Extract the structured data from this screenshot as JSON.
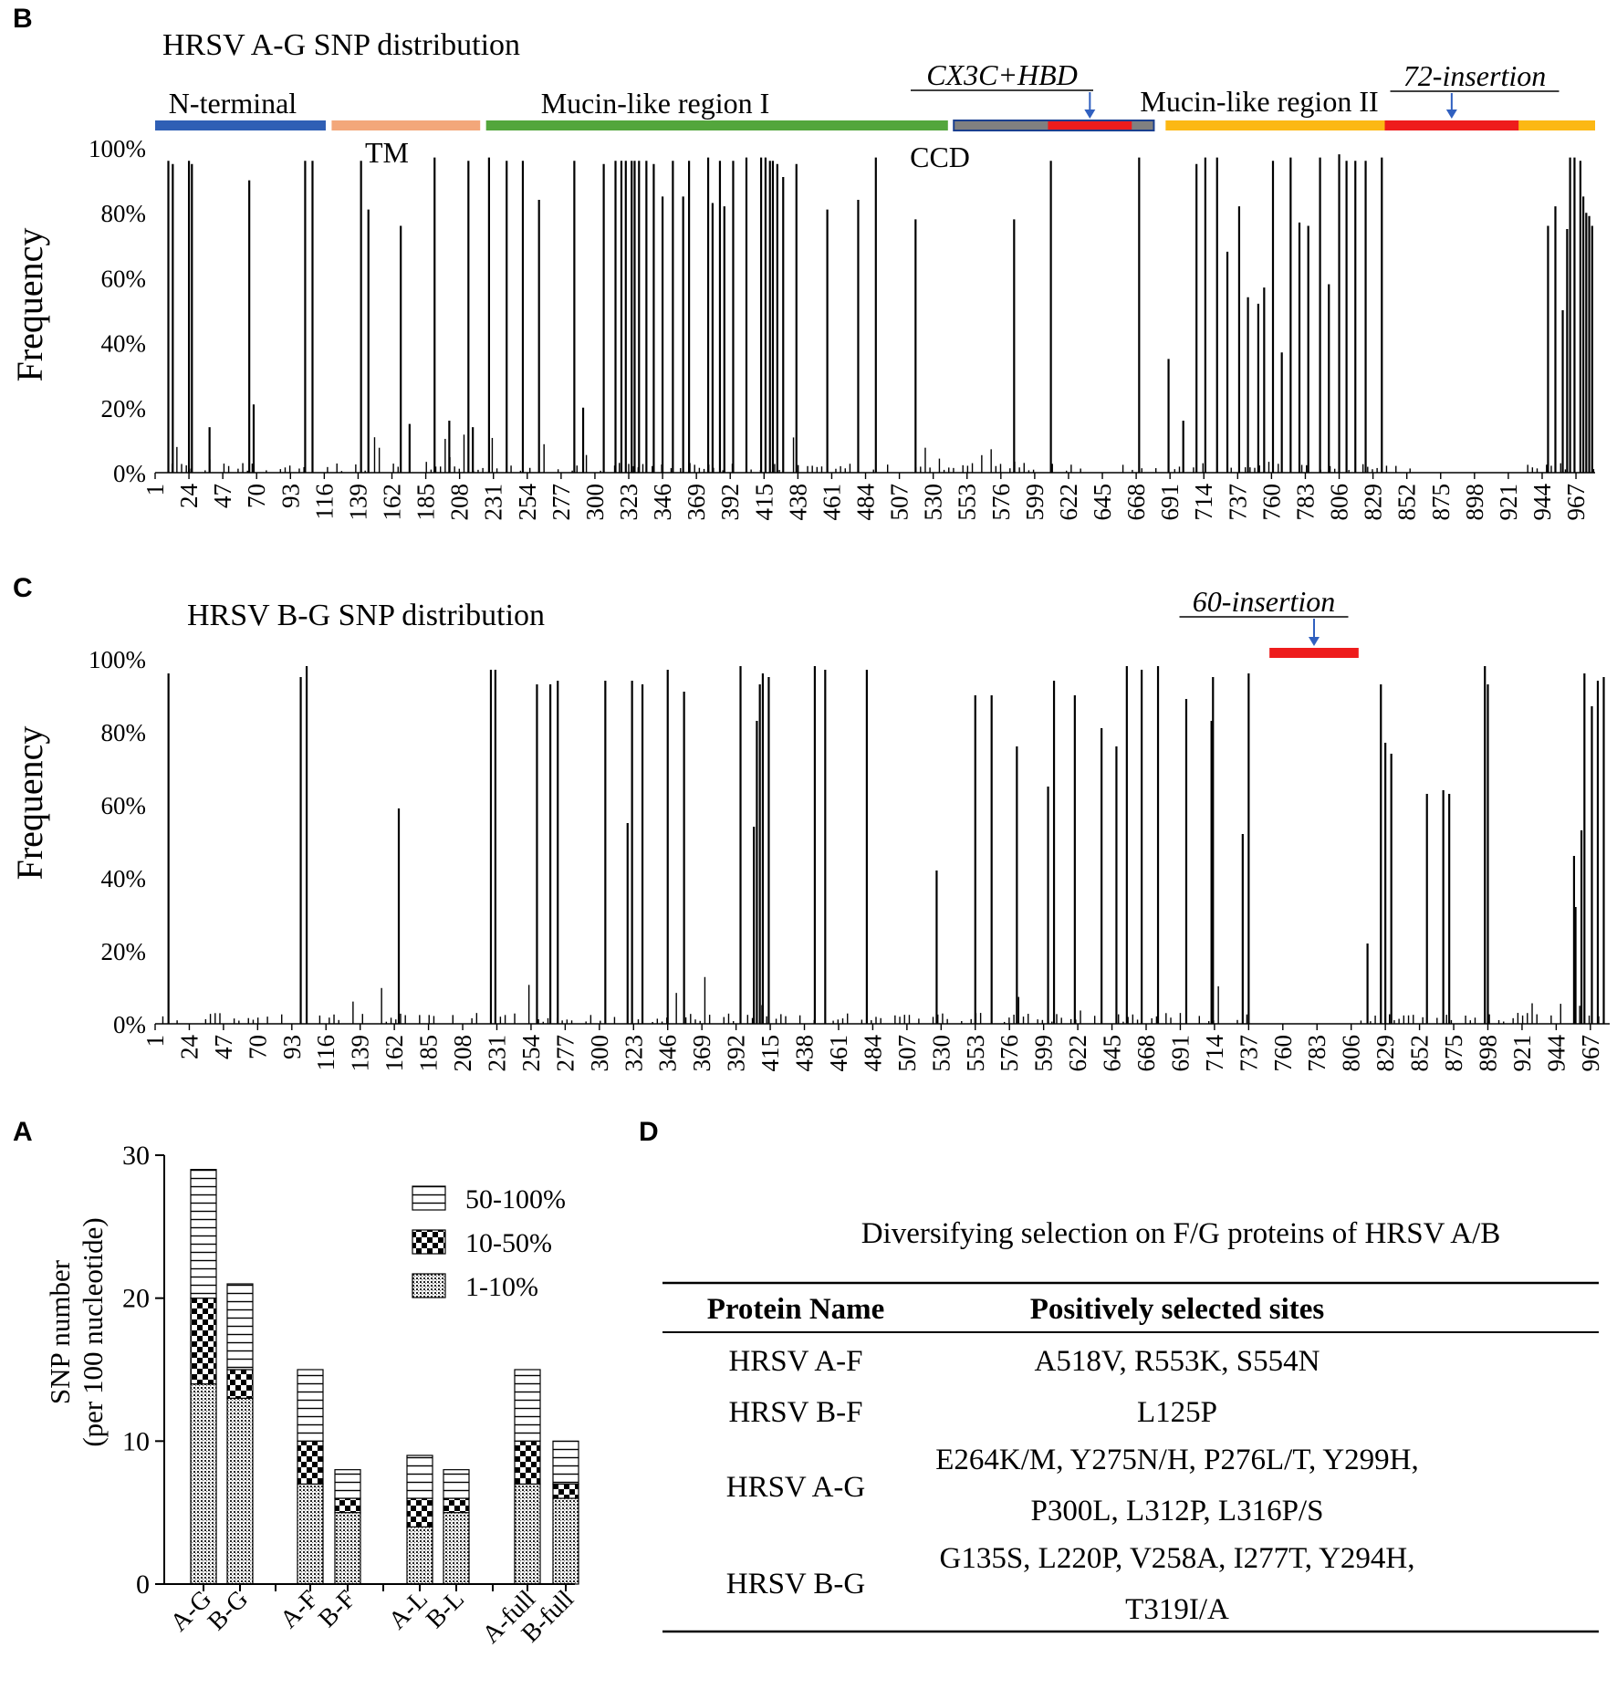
{
  "colors": {
    "nterm": "#2f5fb5",
    "tm": "#f3a77a",
    "mucin1": "#53a63c",
    "ccd": "#808080",
    "red": "#ee1c1c",
    "mucin2": "#fcb814",
    "arrow": "#3060c0",
    "bar": "#000000"
  },
  "panels": {
    "B": "B",
    "C": "C",
    "A": "A",
    "D": "D"
  },
  "chart_data": [
    {
      "id": "B",
      "type": "bar",
      "title": "HRSV A-G SNP distribution",
      "ylabel": "Frequency",
      "ylim": [
        0,
        100
      ],
      "yticks": [
        "0%",
        "20%",
        "40%",
        "60%",
        "80%",
        "100%"
      ],
      "xticks": [
        "1",
        "24",
        "47",
        "70",
        "93",
        "116",
        "139",
        "162",
        "185",
        "208",
        "231",
        "254",
        "277",
        "300",
        "323",
        "346",
        "369",
        "392",
        "415",
        "438",
        "461",
        "484",
        "507",
        "530",
        "553",
        "576",
        "599",
        "622",
        "645",
        "668",
        "691",
        "714",
        "737",
        "760",
        "783",
        "806",
        "829",
        "852",
        "875",
        "898",
        "921",
        "944",
        "967"
      ],
      "xrange": [
        1,
        980
      ],
      "regions": [
        {
          "label": "N-terminal",
          "start": 1,
          "end": 117,
          "color": "nterm"
        },
        {
          "label": "TM",
          "start": 121,
          "end": 222,
          "color": "tm"
        },
        {
          "label": "Mucin-like  region I",
          "start": 226,
          "end": 540,
          "color": "mucin1"
        },
        {
          "label": "CCD",
          "start": 544,
          "end": 680,
          "color": "ccd"
        },
        {
          "label": "CX3C+HBD",
          "start": 608,
          "end": 665,
          "color": "red",
          "annot": true
        },
        {
          "label": "Mucin-like  region II",
          "start": 688,
          "end": 980,
          "color": "mucin2"
        },
        {
          "label": "72-insertion",
          "start": 837,
          "end": 928,
          "color": "red",
          "annot": true
        }
      ],
      "positions": [
        10,
        13,
        24,
        26,
        38,
        65,
        68,
        103,
        108,
        141,
        146,
        168,
        174,
        191,
        201,
        214,
        217,
        228,
        240,
        251,
        262,
        286,
        292,
        306,
        314,
        318,
        321,
        325,
        327,
        330,
        335,
        340,
        346,
        353,
        360,
        364,
        377,
        380,
        385,
        388,
        394,
        403,
        413,
        416,
        419,
        421,
        424,
        428,
        437,
        458,
        479,
        491,
        518,
        585,
        610,
        670,
        690,
        700,
        709,
        715,
        723,
        730,
        738,
        744,
        751,
        755,
        761,
        767,
        773,
        779,
        785,
        793,
        799,
        806,
        811,
        817,
        824,
        835,
        948,
        953,
        958,
        961,
        963,
        966,
        970,
        972,
        974,
        976,
        978
      ],
      "values": [
        96,
        95,
        96,
        95,
        14,
        90,
        21,
        96,
        96,
        96,
        81,
        76,
        15,
        97,
        16,
        96,
        14,
        97,
        96,
        96,
        84,
        96,
        20,
        95,
        96,
        96,
        96,
        96,
        96,
        96,
        96,
        95,
        85,
        96,
        85,
        96,
        97,
        83,
        96,
        82,
        96,
        97,
        97,
        97,
        96,
        96,
        95,
        91,
        95,
        81,
        84,
        97,
        78,
        78,
        96,
        97,
        35,
        16,
        95,
        97,
        97,
        68,
        82,
        54,
        52,
        57,
        96,
        37,
        97,
        77,
        76,
        97,
        58,
        98,
        96,
        96,
        96,
        97,
        76,
        82,
        50,
        75,
        97,
        97,
        96,
        85,
        80,
        79,
        76
      ]
    },
    {
      "id": "C",
      "type": "bar",
      "title": "HRSV B-G SNP distribution",
      "ylabel": "Frequency",
      "ylim": [
        0,
        100
      ],
      "yticks": [
        "0%",
        "20%",
        "40%",
        "60%",
        "80%",
        "100%"
      ],
      "xticks": [
        "1",
        "24",
        "47",
        "70",
        "93",
        "116",
        "139",
        "162",
        "185",
        "208",
        "231",
        "254",
        "277",
        "300",
        "323",
        "346",
        "369",
        "392",
        "415",
        "438",
        "461",
        "484",
        "507",
        "530",
        "553",
        "576",
        "599",
        "622",
        "645",
        "668",
        "691",
        "714",
        "737",
        "760",
        "783",
        "806",
        "829",
        "852",
        "875",
        "898",
        "921",
        "944",
        "967"
      ],
      "xrange": [
        1,
        980
      ],
      "regions": [
        {
          "label": "60-insertion",
          "start": 751,
          "end": 811,
          "color": "red",
          "annot": true
        }
      ],
      "positions": [
        10,
        99,
        103,
        165,
        227,
        230,
        258,
        267,
        272,
        304,
        319,
        322,
        329,
        346,
        357,
        395,
        404,
        406,
        408,
        410,
        414,
        445,
        452,
        480,
        527,
        553,
        564,
        581,
        602,
        606,
        620,
        638,
        648,
        655,
        665,
        676,
        695,
        712,
        713,
        733,
        737,
        817,
        826,
        829,
        833,
        857,
        868,
        872,
        896,
        898,
        956,
        957,
        961,
        963,
        968,
        972,
        976
      ],
      "values": [
        96,
        95,
        98,
        59,
        97,
        97,
        93,
        93,
        94,
        94,
        55,
        94,
        93,
        97,
        91,
        98,
        54,
        83,
        93,
        96,
        95,
        98,
        97,
        97,
        42,
        90,
        90,
        76,
        65,
        94,
        90,
        81,
        76,
        98,
        97,
        98,
        89,
        83,
        95,
        52,
        96,
        22,
        93,
        77,
        74,
        63,
        64,
        63,
        98,
        93,
        46,
        32,
        53,
        96,
        87,
        94,
        95
      ]
    },
    {
      "id": "A",
      "type": "stacked-bar",
      "ylabel_line1": "SNP number",
      "ylabel_line2": "(per 100 nucleotide)",
      "ylim": [
        0,
        30
      ],
      "yticks": [
        "0",
        "10",
        "20",
        "30"
      ],
      "categories": [
        "A-G",
        "B-G",
        "A-F",
        "B-F",
        "A-L",
        "B-L",
        "A-full",
        "B-full"
      ],
      "series": [
        {
          "name": "1-10%",
          "values": [
            14,
            13,
            7,
            5,
            4,
            5,
            7,
            6
          ]
        },
        {
          "name": "10-50%",
          "values": [
            6,
            2,
            3,
            1,
            2,
            1,
            3,
            1
          ]
        },
        {
          "name": "50-100%",
          "values": [
            9,
            6,
            5,
            2,
            3,
            2,
            5,
            3
          ]
        }
      ],
      "legend": [
        "50-100%",
        "10-50%",
        "1-10%"
      ]
    },
    {
      "id": "D",
      "type": "table",
      "title": "Diversifying selection on F/G proteins of HRSV A/B",
      "headers": [
        "Protein Name",
        "Positively selected sites"
      ],
      "rows": [
        {
          "name": "HRSV A-F",
          "sites": [
            "A518V, R553K, S554N"
          ]
        },
        {
          "name": "HRSV B-F",
          "sites": [
            "L125P"
          ]
        },
        {
          "name": "HRSV A-G",
          "sites": [
            "E264K/M, Y275N/H, P276L/T, Y299H,",
            "P300L, L312P, L316P/S"
          ]
        },
        {
          "name": "HRSV B-G",
          "sites": [
            "G135S, L220P, V258A, I277T, Y294H,",
            "T319I/A"
          ]
        }
      ]
    }
  ]
}
